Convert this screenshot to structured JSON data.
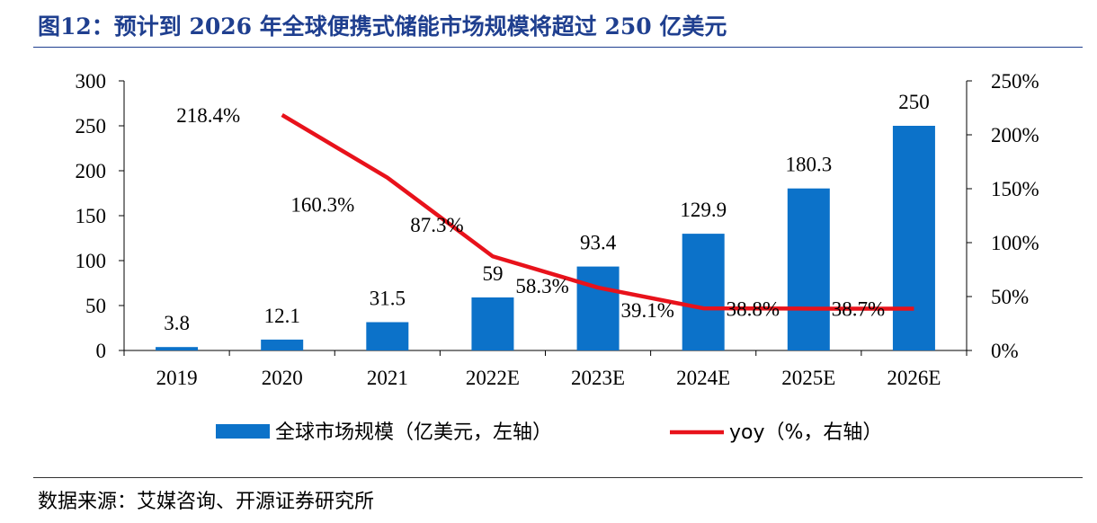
{
  "title": "图12：预计到 2026 年全球便携式储能市场规模将超过 250 亿美元",
  "source": "数据来源：艾媒咨询、开源证券研究所",
  "colors": {
    "bar": "#0c72c9",
    "line": "#e8121b",
    "title": "#1f3f8f"
  },
  "chart_data": {
    "type": "bar+line",
    "categories": [
      "2019",
      "2020",
      "2021",
      "2022E",
      "2023E",
      "2024E",
      "2025E",
      "2026E"
    ],
    "series": [
      {
        "name": "全球市场规模（亿美元，左轴）",
        "type": "bar",
        "axis": "left",
        "values": [
          3.8,
          12.1,
          31.5,
          59,
          93.4,
          129.9,
          180.3,
          250
        ],
        "labels": [
          "3.8",
          "12.1",
          "31.5",
          "59",
          "93.4",
          "129.9",
          "180.3",
          "250"
        ]
      },
      {
        "name": "yoy（%，右轴）",
        "type": "line",
        "axis": "right",
        "values": [
          null,
          218.4,
          160.3,
          87.3,
          58.3,
          39.1,
          38.8,
          38.7
        ],
        "labels": [
          "",
          "218.4%",
          "160.3%",
          "87.3%",
          "58.3%",
          "39.1%",
          "38.8%",
          "38.7%"
        ]
      }
    ],
    "left_axis": {
      "ylim": [
        0,
        300
      ],
      "ticks": [
        "0",
        "50",
        "100",
        "150",
        "200",
        "250",
        "300"
      ]
    },
    "right_axis": {
      "ylim": [
        0,
        250
      ],
      "ticks": [
        "0%",
        "50%",
        "100%",
        "150%",
        "200%",
        "250%"
      ]
    },
    "legend": [
      "全球市场规模（亿美元，左轴）",
      "yoy（%，右轴）"
    ],
    "legend_position": "bottom"
  }
}
